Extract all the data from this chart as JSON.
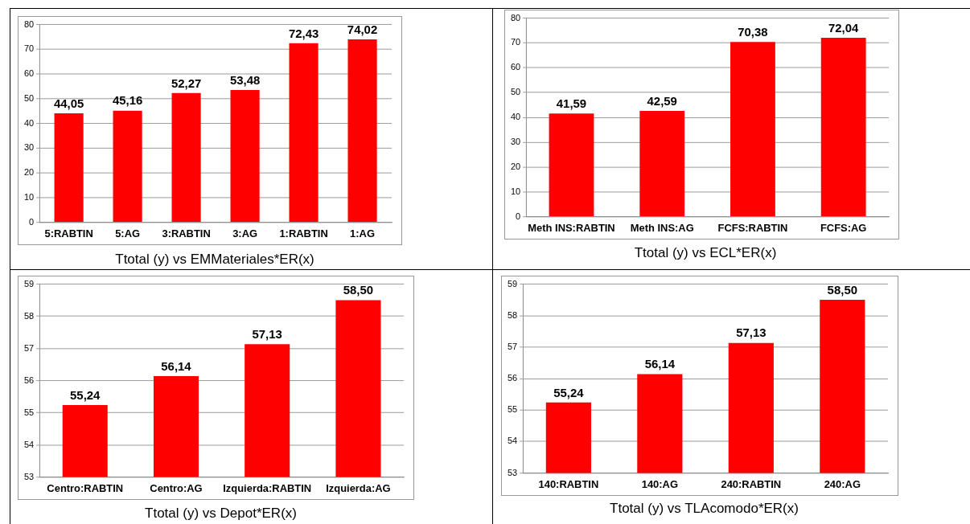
{
  "chart_data": [
    {
      "type": "bar",
      "title": "Ttotal (y) vs EMMateriales*ER(x)",
      "categories": [
        "5:RABTIN",
        "5:AG",
        "3:RABTIN",
        "3:AG",
        "1:RABTIN",
        "1:AG"
      ],
      "values": [
        44.05,
        45.16,
        52.27,
        53.48,
        72.43,
        74.02
      ],
      "value_labels": [
        "44,05",
        "45,16",
        "52,27",
        "53,48",
        "72,43",
        "74,02"
      ],
      "color": "#ff0000",
      "ylim": [
        0,
        80
      ],
      "yticks": [
        0,
        10,
        20,
        30,
        40,
        50,
        60,
        70,
        80
      ],
      "grid": "y"
    },
    {
      "type": "bar",
      "title": "Ttotal (y) vs ECL*ER(x)",
      "categories": [
        "Meth INS:RABTIN",
        "Meth INS:AG",
        "FCFS:RABTIN",
        "FCFS:AG"
      ],
      "values": [
        41.59,
        42.59,
        70.38,
        72.04
      ],
      "value_labels": [
        "41,59",
        "42,59",
        "70,38",
        "72,04"
      ],
      "color": "#ff0000",
      "ylim": [
        0,
        80
      ],
      "yticks": [
        0,
        10,
        20,
        30,
        40,
        50,
        60,
        70,
        80
      ],
      "grid": "y"
    },
    {
      "type": "bar",
      "title": "Ttotal (y) vs Depot*ER(x)",
      "categories": [
        "Centro:RABTIN",
        "Centro:AG",
        "Izquierda:RABTIN",
        "Izquierda:AG"
      ],
      "values": [
        55.24,
        56.14,
        57.13,
        58.5
      ],
      "value_labels": [
        "55,24",
        "56,14",
        "57,13",
        "58,50"
      ],
      "color": "#ff0000",
      "ylim": [
        53,
        59
      ],
      "yticks": [
        53,
        54,
        55,
        56,
        57,
        58,
        59
      ],
      "grid": "y"
    },
    {
      "type": "bar",
      "title": "Ttotal (y) vs TLAcomodo*ER(x)",
      "categories": [
        "140:RABTIN",
        "140:AG",
        "240:RABTIN",
        "240:AG"
      ],
      "values": [
        55.24,
        56.14,
        57.13,
        58.5
      ],
      "value_labels": [
        "55,24",
        "56,14",
        "57,13",
        "58,50"
      ],
      "color": "#ff0000",
      "ylim": [
        53,
        59
      ],
      "yticks": [
        53,
        54,
        55,
        56,
        57,
        58,
        59
      ],
      "grid": "y"
    }
  ]
}
